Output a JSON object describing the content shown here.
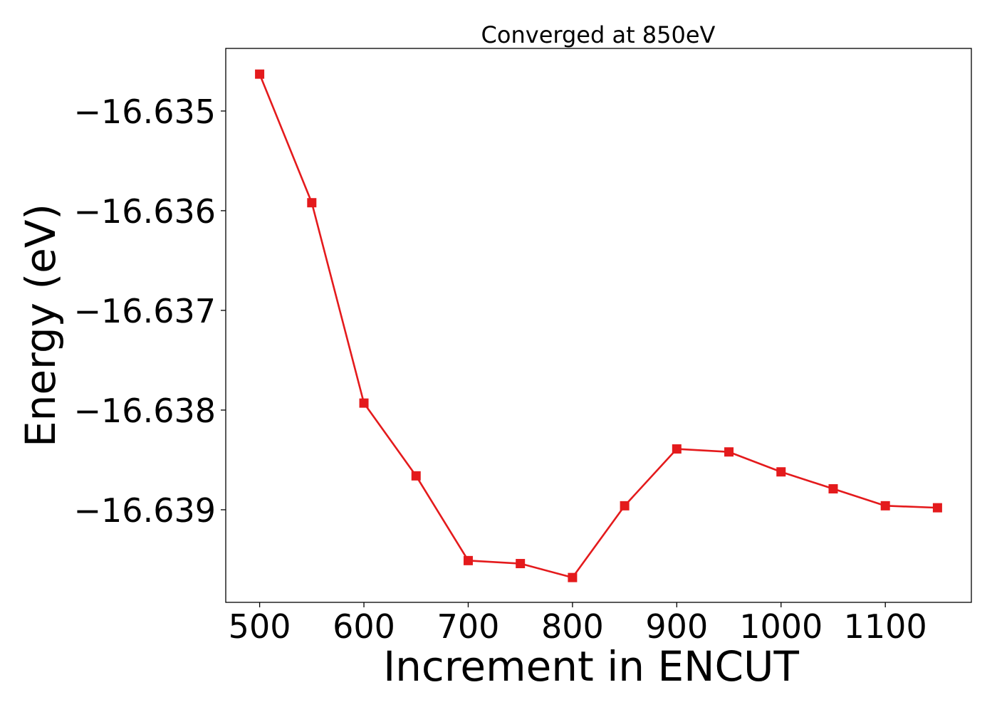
{
  "chart_data": {
    "type": "line",
    "title": "Converged at 850eV",
    "xlabel": "Increment in ENCUT",
    "ylabel": "Energy (eV)",
    "x": [
      500,
      550,
      600,
      650,
      700,
      750,
      800,
      850,
      900,
      950,
      1000,
      1050,
      1100,
      1150
    ],
    "series": [
      {
        "values": [
          -16.63463,
          -16.63592,
          -16.63793,
          -16.63866,
          -16.63951,
          -16.63954,
          -16.63968,
          -16.63896,
          -16.63839,
          -16.63842,
          -16.63862,
          -16.63879,
          -16.63896,
          -16.63898
        ],
        "color": "#e41a1c",
        "marker": "square"
      }
    ],
    "xticks": [
      500,
      600,
      700,
      800,
      900,
      1000,
      1100
    ],
    "xtick_labels": [
      "500",
      "600",
      "700",
      "800",
      "900",
      "1000",
      "1100"
    ],
    "yticks": [
      -16.635,
      -16.636,
      -16.637,
      -16.638,
      -16.639
    ],
    "ytick_labels": [
      "−16.635",
      "−16.636",
      "−16.637",
      "−16.638",
      "−16.639"
    ],
    "xlim": [
      467.5,
      1182.5
    ],
    "ylim": [
      -16.639929,
      -16.634372
    ],
    "grid": false,
    "legend": "none"
  }
}
